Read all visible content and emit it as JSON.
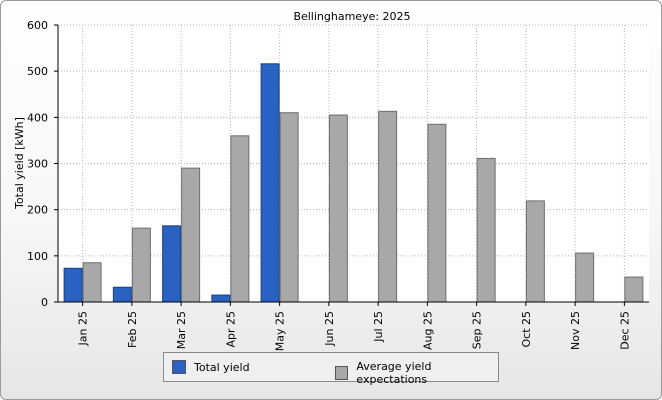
{
  "chart_data": {
    "type": "bar",
    "title": "Bellinghameye: 2025",
    "ylabel": "Total yield [kWh]",
    "xlabel": "",
    "ylim": [
      0,
      600
    ],
    "yticks": [
      0,
      100,
      200,
      300,
      400,
      500,
      600
    ],
    "grid": true,
    "legend_position": "bottom",
    "categories": [
      "Jan 25",
      "Feb 25",
      "Mar 25",
      "Apr 25",
      "May 25",
      "Jun 25",
      "Jul 25",
      "Aug 25",
      "Sep 25",
      "Oct 25",
      "Nov 25",
      "Dec 25"
    ],
    "series": [
      {
        "name": "Total yield",
        "color": "#2a62c4",
        "values": [
          73,
          32,
          165,
          15,
          516,
          null,
          null,
          null,
          null,
          null,
          null,
          null
        ]
      },
      {
        "name": "Average yield expectations",
        "color": "#a8a8a8",
        "values": [
          85,
          160,
          290,
          360,
          410,
          405,
          413,
          385,
          311,
          219,
          106,
          54
        ]
      }
    ]
  }
}
